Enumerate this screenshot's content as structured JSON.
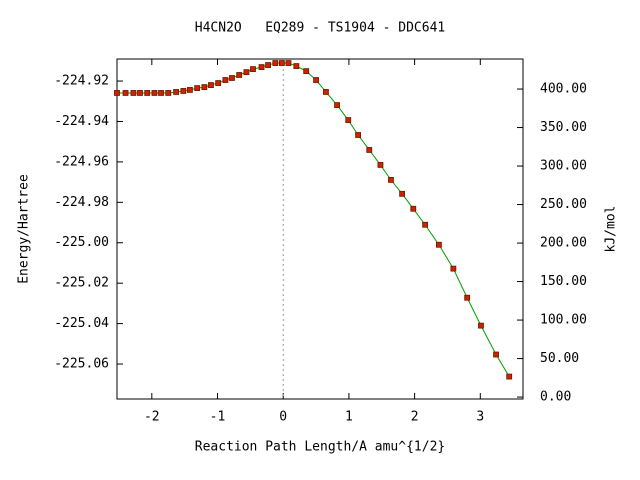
{
  "chart_data": {
    "type": "line",
    "title": "H4CN2O   EQ289 - TS1904 - DDC641",
    "xlabel": "Reaction Path Length/A amu^{1/2}",
    "ylabel": "Energy/Hartree",
    "y2label": "kJ/mol",
    "x": [
      -2.53,
      -2.4,
      -2.28,
      -2.18,
      -2.07,
      -1.96,
      -1.86,
      -1.75,
      -1.63,
      -1.52,
      -1.42,
      -1.31,
      -1.2,
      -1.1,
      -0.99,
      -0.88,
      -0.78,
      -0.67,
      -0.56,
      -0.46,
      -0.33,
      -0.23,
      -0.12,
      -0.02,
      0.08,
      0.2,
      0.35,
      0.5,
      0.65,
      0.82,
      0.99,
      1.14,
      1.31,
      1.48,
      1.64,
      1.81,
      1.98,
      2.16,
      2.37,
      2.59,
      2.8,
      3.01,
      3.24,
      3.44
    ],
    "values": [
      -224.9259,
      -224.9259,
      -224.9259,
      -224.9259,
      -224.9259,
      -224.9259,
      -224.9259,
      -224.9259,
      -224.9254,
      -224.9249,
      -224.9244,
      -224.9235,
      -224.923,
      -224.922,
      -224.921,
      -224.9195,
      -224.9185,
      -224.917,
      -224.9156,
      -224.9141,
      -224.9131,
      -224.9121,
      -224.9111,
      -224.9111,
      -224.9111,
      -224.9126,
      -224.9151,
      -224.9195,
      -224.9254,
      -224.9319,
      -224.9393,
      -224.9467,
      -224.9541,
      -224.9615,
      -224.9689,
      -224.9758,
      -224.9832,
      -224.9911,
      -225.001,
      -225.0128,
      -225.0272,
      -225.041,
      -225.0553,
      -225.0662
    ],
    "color": "#00a000",
    "marker_color": "#cc2200",
    "vline": 0,
    "xlim": [
      -2.53,
      3.65
    ],
    "xticks": [
      -2,
      -1,
      0,
      1,
      2,
      3
    ],
    "ylim": [
      -225.0773,
      -224.9091
    ],
    "yticks": [
      -224.92,
      -224.94,
      -224.96,
      -224.98,
      {
        "value": -225.0,
        "label": "-225.00"
      },
      -225.02,
      -225.04,
      -225.06
    ],
    "y2lim": [
      -2.5,
      439
    ],
    "y2ticks": [
      {
        "value": 0,
        "label": "0.00"
      },
      {
        "value": 50,
        "label": "50.00"
      },
      {
        "value": 100,
        "label": "100.00"
      },
      {
        "value": 150,
        "label": "150.00"
      },
      {
        "value": 200,
        "label": "200.00"
      },
      {
        "value": 250,
        "label": "250.00"
      },
      {
        "value": 300,
        "label": "300.00"
      },
      {
        "value": 350,
        "label": "350.00"
      },
      {
        "value": 400,
        "label": "400.00"
      }
    ]
  }
}
